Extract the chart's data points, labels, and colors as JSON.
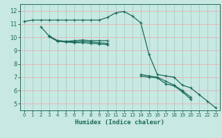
{
  "xlabel": "Humidex (Indice chaleur)",
  "background_color": "#b8e8e0",
  "grid_color_h": "#e8b8b8",
  "grid_color_v": "#9ecfca",
  "line_color": "#1a6b5a",
  "axis_bg": "#cce8e4",
  "xlim": [
    -0.5,
    23.5
  ],
  "ylim": [
    4.5,
    12.5
  ],
  "yticks": [
    5,
    6,
    7,
    8,
    9,
    10,
    11,
    12
  ],
  "xticks": [
    0,
    1,
    2,
    3,
    4,
    5,
    6,
    7,
    8,
    9,
    10,
    11,
    12,
    13,
    14,
    15,
    16,
    17,
    18,
    19,
    20,
    21,
    22,
    23
  ],
  "series": [
    {
      "x": [
        0,
        1,
        2,
        3,
        4,
        5,
        6,
        7,
        8,
        9,
        10,
        11,
        12,
        13,
        14,
        15,
        16,
        17,
        18,
        19,
        20,
        21,
        22,
        23
      ],
      "y": [
        11.2,
        11.3,
        11.3,
        11.3,
        11.3,
        11.3,
        11.3,
        11.3,
        11.3,
        11.3,
        11.5,
        11.85,
        11.95,
        11.6,
        11.1,
        8.7,
        7.2,
        7.1,
        7.0,
        6.4,
        6.2,
        5.7,
        5.2,
        4.7
      ]
    },
    {
      "x": [
        2,
        3,
        4,
        5,
        6,
        7,
        8,
        9,
        10
      ],
      "y": [
        10.8,
        10.1,
        9.75,
        9.7,
        9.75,
        9.8,
        9.75,
        9.75,
        9.75
      ]
    },
    {
      "x": [
        3,
        4,
        5,
        6,
        7,
        8,
        9,
        10
      ],
      "y": [
        10.1,
        9.75,
        9.7,
        9.65,
        9.7,
        9.65,
        9.6,
        9.55
      ],
      "x2": [
        14,
        15,
        16,
        17,
        18,
        19,
        20
      ],
      "y2": [
        7.2,
        7.1,
        7.0,
        6.7,
        6.4,
        6.0,
        5.5
      ]
    },
    {
      "x": [
        3,
        4,
        5,
        6,
        7,
        8,
        9,
        10
      ],
      "y": [
        10.05,
        9.7,
        9.65,
        9.6,
        9.6,
        9.55,
        9.5,
        9.45
      ],
      "x2": [
        14,
        15,
        16,
        17,
        18,
        19,
        20
      ],
      "y2": [
        7.1,
        7.0,
        6.95,
        6.5,
        6.35,
        5.9,
        5.35
      ]
    }
  ]
}
